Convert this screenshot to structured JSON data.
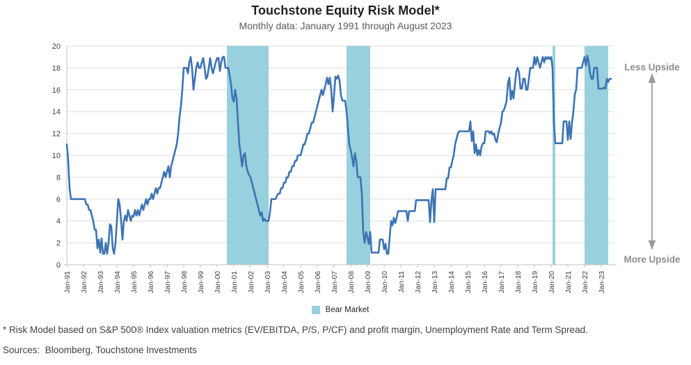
{
  "header": {
    "title": "Touchstone Equity Risk Model*",
    "subtitle": "Monthly data: January 1991 through August 2023"
  },
  "annotations": {
    "less_upside": "Less Upside",
    "more_upside": "More Upside"
  },
  "legend": {
    "bear_market_label": "Bear Market"
  },
  "footnotes": {
    "risk_model_note": "* Risk Model based on S&P 500® Index valuation metrics (EV/EBITDA, P/S, P/CF) and profit margin, Unemployment Rate and Term Spread.",
    "sources": "Sources:  Bloomberg, Touchstone Investments"
  },
  "chart_data": {
    "type": "line",
    "title": "Touchstone Equity Risk Model*",
    "subtitle": "Monthly data: January 1991 through August 2023",
    "xlabel": "",
    "ylabel": "",
    "ylim": [
      0,
      20
    ],
    "y_ticks": [
      0,
      2,
      4,
      6,
      8,
      10,
      12,
      14,
      16,
      18,
      20
    ],
    "x_unit": "month",
    "x_start": "Jan-1991",
    "x_end": "Aug-2023",
    "x_tick_labels": [
      "Jan-91",
      "Jan-92",
      "Jan-93",
      "Jan-94",
      "Jan-95",
      "Jan-96",
      "Jan-97",
      "Jan-98",
      "Jan-99",
      "Jan-00",
      "Jan-01",
      "Jan-02",
      "Jan-03",
      "Jan-04",
      "Jan-05",
      "Jan-06",
      "Jan-07",
      "Jan-08",
      "Jan-09",
      "Jan-10",
      "Jan-11",
      "Jan-12",
      "Jan-13",
      "Jan-14",
      "Jan-15",
      "Jan-16",
      "Jan-17",
      "Jan-18",
      "Jan-19",
      "Jan-20",
      "Jan-21",
      "Jan-22",
      "Jan-23"
    ],
    "grid": "horizontal",
    "legend_position": "bottom-center",
    "series": [
      {
        "name": "Equity Risk Model",
        "values": [
          11.0,
          9.5,
          7.0,
          6.0,
          6.0,
          6.0,
          6.0,
          6.0,
          6.0,
          6.0,
          6.0,
          6.0,
          6.0,
          6.0,
          5.5,
          5.5,
          5.0,
          5.0,
          4.5,
          4.0,
          3.2,
          3.2,
          1.5,
          2.3,
          1.1,
          2.4,
          1.0,
          1.0,
          2.0,
          1.0,
          2.0,
          3.7,
          3.5,
          1.5,
          1.0,
          2.0,
          4.0,
          6.0,
          5.5,
          4.0,
          2.3,
          4.0,
          4.5,
          4.0,
          5.0,
          4.5,
          4.0,
          4.5,
          4.4,
          5.0,
          4.5,
          5.0,
          4.5,
          5.0,
          5.5,
          5.0,
          5.5,
          6.0,
          5.5,
          6.0,
          6.0,
          6.5,
          6.0,
          6.5,
          7.0,
          6.5,
          7.0,
          7.0,
          7.5,
          8.0,
          8.5,
          8.0,
          8.5,
          9.0,
          8.0,
          9.0,
          9.5,
          10.0,
          10.5,
          11.0,
          12.0,
          13.5,
          14.5,
          16.0,
          18.0,
          18.0,
          18.0,
          17.5,
          18.5,
          19.0,
          18.0,
          16.0,
          17.0,
          18.0,
          18.5,
          18.0,
          18.0,
          18.5,
          18.9,
          18.0,
          17.0,
          17.2,
          18.0,
          18.9,
          18.0,
          17.5,
          18.0,
          18.5,
          18.9,
          18.9,
          17.7,
          18.5,
          19.0,
          19.0,
          18.0,
          18.0,
          18.0,
          17.3,
          16.5,
          15.2,
          14.9,
          16.0,
          15.2,
          13.0,
          11.0,
          10.0,
          9.0,
          10.0,
          10.2,
          9.0,
          8.5,
          8.2,
          8.0,
          7.5,
          7.0,
          6.5,
          6.0,
          5.5,
          5.0,
          4.5,
          4.8,
          4.0,
          4.2,
          4.0,
          4.0,
          4.0,
          4.8,
          6.0,
          6.0,
          6.0,
          6.0,
          6.3,
          6.5,
          6.5,
          7.0,
          7.0,
          7.5,
          7.5,
          8.0,
          8.0,
          8.5,
          8.5,
          9.0,
          9.0,
          9.5,
          9.5,
          10.0,
          10.0,
          10.0,
          10.5,
          11.0,
          11.0,
          11.5,
          12.0,
          12.0,
          12.5,
          13.0,
          13.0,
          13.5,
          14.0,
          14.5,
          15.0,
          15.5,
          16.0,
          15.5,
          16.0,
          16.5,
          17.1,
          16.5,
          17.1,
          16.0,
          14.0,
          15.5,
          17.2,
          17.0,
          17.3,
          16.8,
          15.5,
          15.0,
          15.0,
          15.0,
          14.0,
          12.5,
          11.0,
          10.5,
          9.8,
          9.0,
          10.2,
          9.5,
          8.0,
          8.0,
          8.0,
          6.5,
          2.9,
          2.0,
          3.0,
          2.5,
          1.9,
          3.0,
          1.1,
          1.1,
          1.1,
          1.1,
          1.1,
          1.1,
          2.3,
          2.3,
          2.3,
          1.4,
          1.9,
          1.0,
          1.0,
          2.5,
          4.0,
          3.6,
          4.3,
          3.8,
          4.3,
          4.9,
          4.9,
          4.9,
          4.9,
          4.9,
          4.9,
          4.9,
          4.0,
          4.9,
          4.9,
          4.9,
          4.9,
          4.9,
          5.9,
          5.9,
          5.9,
          5.9,
          5.9,
          5.9,
          5.9,
          5.9,
          5.9,
          5.9,
          3.9,
          5.9,
          6.9,
          3.9,
          6.9,
          6.9,
          6.9,
          6.9,
          6.9,
          6.9,
          6.9,
          6.9,
          7.9,
          7.9,
          8.9,
          8.9,
          9.5,
          10.0,
          11.0,
          11.5,
          12.0,
          12.2,
          12.2,
          12.2,
          12.2,
          12.2,
          12.2,
          12.2,
          12.2,
          13.1,
          11.3,
          12.2,
          10.2,
          11.0,
          10.0,
          10.5,
          10.0,
          10.8,
          11.1,
          11.1,
          12.2,
          12.2,
          12.2,
          12.0,
          12.2,
          11.9,
          12.0,
          11.4,
          11.2,
          12.0,
          12.5,
          13.0,
          14.0,
          14.1,
          14.5,
          15.0,
          16.6,
          17.1,
          15.1,
          15.9,
          15.2,
          16.5,
          17.7,
          18.0,
          17.5,
          16.1,
          16.1,
          17.0,
          17.0,
          16.0,
          16.0,
          17.0,
          18.0,
          18.0,
          18.0,
          19.0,
          18.3,
          19.0,
          18.5,
          18.0,
          18.5,
          19.0,
          18.5,
          19.0,
          18.8,
          19.0,
          18.8,
          19.0,
          18.0,
          13.0,
          11.1,
          11.1,
          11.1,
          11.1,
          11.1,
          11.1,
          13.1,
          13.1,
          13.1,
          11.4,
          13.1,
          11.5,
          13.0,
          14.0,
          15.6,
          16.0,
          18.0,
          18.0,
          18.0,
          18.0,
          18.5,
          19.0,
          18.2,
          19.1,
          18.5,
          17.5,
          17.0,
          17.0,
          18.0,
          18.0,
          18.0,
          16.1,
          16.1,
          16.1,
          16.1,
          16.2,
          16.1,
          17.0,
          16.7,
          17.0,
          17.0
        ]
      }
    ],
    "bear_markets": [
      {
        "label": "Bear Market",
        "start": "Aug-2000",
        "end": "Feb-2003",
        "start_index": 115,
        "end_index": 145
      },
      {
        "label": "Bear Market",
        "start": "Oct-2007",
        "end": "Mar-2009",
        "start_index": 201,
        "end_index": 218
      },
      {
        "label": "Bear Market",
        "start": "Feb-2020",
        "end": "Apr-2020",
        "start_index": 349,
        "end_index": 351
      },
      {
        "label": "Bear Market",
        "start": "Jan-2022",
        "end": "Jun-2023",
        "start_index": 372,
        "end_index": 389
      }
    ],
    "annotations": {
      "top_right": "Less Upside",
      "bottom_right": "More Upside"
    },
    "colors": {
      "line": "#3c73b4",
      "bear_shading": "#99d0dd",
      "gridline": "#dcdcdc",
      "axis": "#c0c0c0",
      "tick_label": "#3f3f3f",
      "upside_label": "#8b8d90",
      "arrow": "#9b9b9b"
    }
  }
}
